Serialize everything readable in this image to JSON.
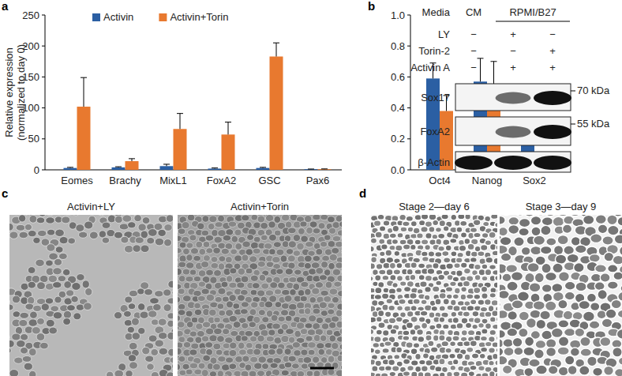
{
  "chart_data": [
    {
      "type": "bar",
      "panel_label": "a",
      "y_label": "Relative expression (normalized to day 0)",
      "categories": [
        "Eomes",
        "Brachy",
        "MixL1",
        "FoxA2",
        "GSC",
        "Pax6"
      ],
      "series": [
        {
          "name": "Activin",
          "color": "#2b5fa3",
          "values": [
            3,
            4,
            6,
            2,
            3,
            1
          ],
          "errors": [
            1,
            1,
            3,
            1,
            1,
            0.3
          ]
        },
        {
          "name": "Activin+Torin",
          "color": "#e8792f",
          "values": [
            102,
            14,
            66,
            57,
            183,
            1
          ],
          "errors": [
            47,
            4,
            25,
            20,
            22,
            0.5
          ]
        }
      ],
      "ylim": [
        0,
        250
      ],
      "yticks": [
        0,
        50,
        100,
        150,
        200,
        250
      ],
      "legend": "top-left"
    },
    {
      "type": "bar",
      "categories": [
        "Oct4",
        "Nanog",
        "Sox2"
      ],
      "series": [
        {
          "color": "#2b5fa3",
          "values": [
            0.59,
            0.57,
            0.2
          ],
          "errors": [
            0.1,
            0.15,
            0.09
          ]
        },
        {
          "color": "#e8792f",
          "values": [
            0.38,
            0.5,
            0.06
          ],
          "errors": [
            0.1,
            0.2,
            0.02
          ]
        }
      ],
      "ylim": [
        0,
        1
      ],
      "yticks": [
        {
          "value": 0,
          "label": "0.0"
        },
        0.2,
        0.4,
        0.6,
        0.8,
        {
          "value": 1,
          "label": "1.0"
        }
      ]
    }
  ],
  "blot": {
    "panel_label": "b",
    "media_label": "Media",
    "media": [
      {
        "label": "CM",
        "lanes": [
          0
        ]
      },
      {
        "label": "RPMI/B27",
        "lanes": [
          1,
          2
        ]
      }
    ],
    "treatments": [
      {
        "label": "LY",
        "marks": [
          "−",
          "+",
          "−"
        ]
      },
      {
        "label": "Torin-2",
        "marks": [
          "−",
          "−",
          "+"
        ]
      },
      {
        "label": "Activin A",
        "marks": [
          "−",
          "+",
          "+"
        ]
      }
    ],
    "rows": [
      {
        "label": "Sox17",
        "size": "70 kDa",
        "intensity": [
          0,
          0.6,
          1
        ]
      },
      {
        "label": "FoxA2",
        "size": "55 kDa",
        "intensity": [
          0,
          0.6,
          1
        ]
      },
      {
        "label": "β-Actin",
        "intensity": [
          1,
          1,
          1
        ]
      }
    ]
  },
  "micrographs": [
    {
      "panel_label": "c",
      "images": [
        "Activin+LY",
        "Activin+Torin"
      ]
    },
    {
      "panel_label": "d",
      "images": [
        "Stage 2—day 6",
        "Stage 3—day 9"
      ]
    }
  ]
}
